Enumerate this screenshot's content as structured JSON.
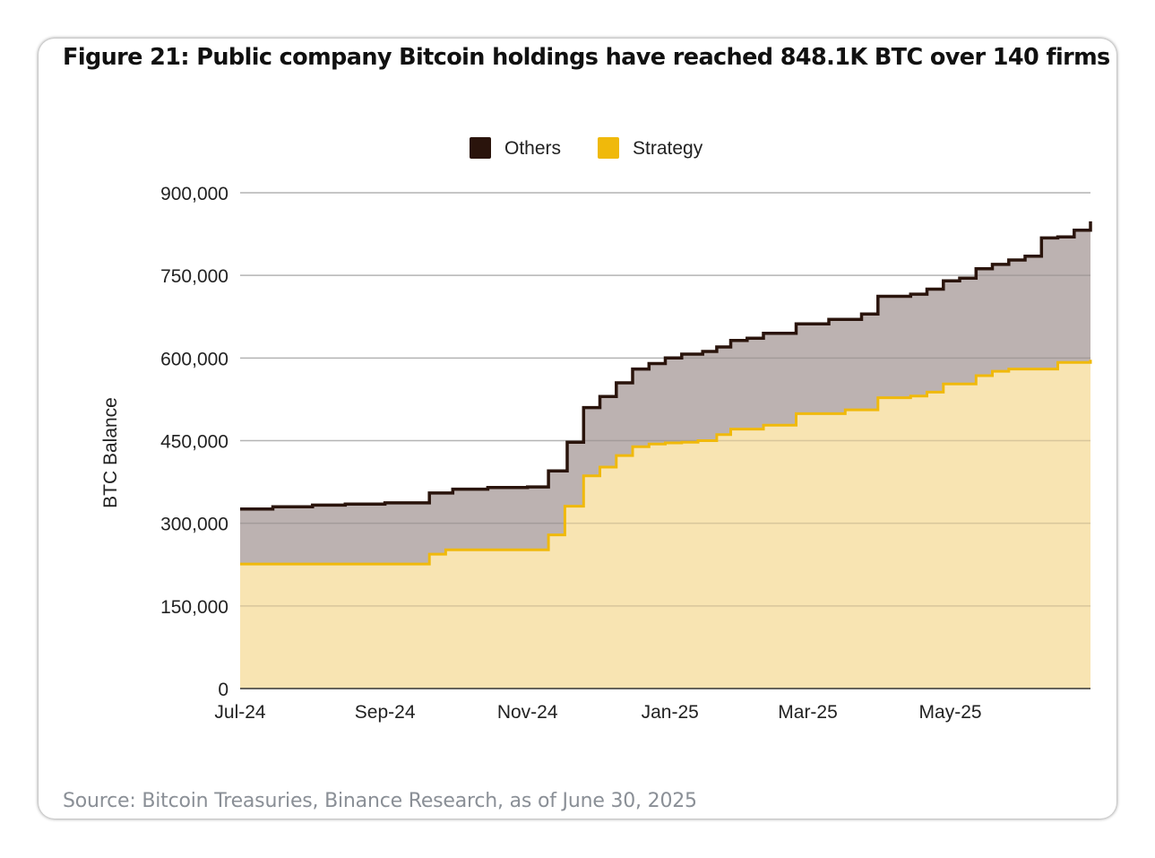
{
  "figure": {
    "title": "Figure 21: Public company Bitcoin holdings have reached 848.1K BTC over 140 firms",
    "source": "Source: Bitcoin Treasuries, Binance Research, as of June 30, 2025"
  },
  "chart_data": {
    "type": "area",
    "stacked": true,
    "step": true,
    "ylabel": "BTC Balance",
    "xlabel": "",
    "ylim": [
      0,
      900000
    ],
    "yticks": [
      0,
      150000,
      300000,
      450000,
      600000,
      750000,
      900000
    ],
    "ytick_labels": [
      "0",
      "150,000",
      "300,000",
      "450,000",
      "600,000",
      "750,000",
      "900,000"
    ],
    "xlim": [
      "2024-07-01",
      "2025-06-30"
    ],
    "xticks": [
      "2024-07-01",
      "2024-09-01",
      "2024-11-01",
      "2025-01-01",
      "2025-03-01",
      "2025-05-01"
    ],
    "xtick_labels": [
      "Jul-24",
      "Sep-24",
      "Nov-24",
      "Jan-25",
      "Mar-25",
      "May-25"
    ],
    "grid": true,
    "legend_position": "top-center",
    "legend": [
      {
        "name": "Others",
        "color": "#2a140c",
        "fill": "#bcb2b1"
      },
      {
        "name": "Strategy",
        "color": "#f0b90b",
        "fill": "#f8e4b2"
      }
    ],
    "series": [
      {
        "name": "Total (Strategy + Others)",
        "points": [
          [
            "2024-07-01",
            326000
          ],
          [
            "2024-07-15",
            330000
          ],
          [
            "2024-08-01",
            333000
          ],
          [
            "2024-08-15",
            335000
          ],
          [
            "2024-09-01",
            337000
          ],
          [
            "2024-09-20",
            355000
          ],
          [
            "2024-09-30",
            362000
          ],
          [
            "2024-10-15",
            365000
          ],
          [
            "2024-11-01",
            366000
          ],
          [
            "2024-11-10",
            395000
          ],
          [
            "2024-11-18",
            447000
          ],
          [
            "2024-11-25",
            510000
          ],
          [
            "2024-12-02",
            530000
          ],
          [
            "2024-12-09",
            555000
          ],
          [
            "2024-12-16",
            580000
          ],
          [
            "2024-12-23",
            590000
          ],
          [
            "2024-12-30",
            600000
          ],
          [
            "2025-01-06",
            607000
          ],
          [
            "2025-01-15",
            612000
          ],
          [
            "2025-01-21",
            620000
          ],
          [
            "2025-01-27",
            632000
          ],
          [
            "2025-02-03",
            636000
          ],
          [
            "2025-02-10",
            645000
          ],
          [
            "2025-02-24",
            662000
          ],
          [
            "2025-03-10",
            670000
          ],
          [
            "2025-03-24",
            680000
          ],
          [
            "2025-03-31",
            712000
          ],
          [
            "2025-04-14",
            716000
          ],
          [
            "2025-04-21",
            725000
          ],
          [
            "2025-04-28",
            740000
          ],
          [
            "2025-05-05",
            745000
          ],
          [
            "2025-05-12",
            762000
          ],
          [
            "2025-05-19",
            770000
          ],
          [
            "2025-05-26",
            778000
          ],
          [
            "2025-06-02",
            785000
          ],
          [
            "2025-06-09",
            818000
          ],
          [
            "2025-06-16",
            820000
          ],
          [
            "2025-06-23",
            832000
          ],
          [
            "2025-06-30",
            848100
          ]
        ]
      },
      {
        "name": "Strategy",
        "points": [
          [
            "2024-07-01",
            226000
          ],
          [
            "2024-09-20",
            244000
          ],
          [
            "2024-09-27",
            252000
          ],
          [
            "2024-11-10",
            279000
          ],
          [
            "2024-11-17",
            331000
          ],
          [
            "2024-11-25",
            386000
          ],
          [
            "2024-12-02",
            402000
          ],
          [
            "2024-12-09",
            423000
          ],
          [
            "2024-12-16",
            439000
          ],
          [
            "2024-12-23",
            444000
          ],
          [
            "2024-12-30",
            446000
          ],
          [
            "2025-01-06",
            447000
          ],
          [
            "2025-01-13",
            450000
          ],
          [
            "2025-01-21",
            461000
          ],
          [
            "2025-01-27",
            471000
          ],
          [
            "2025-02-10",
            478000
          ],
          [
            "2025-02-24",
            499000
          ],
          [
            "2025-03-17",
            506000
          ],
          [
            "2025-03-31",
            528000
          ],
          [
            "2025-04-14",
            531000
          ],
          [
            "2025-04-21",
            538000
          ],
          [
            "2025-04-28",
            553000
          ],
          [
            "2025-05-12",
            568000
          ],
          [
            "2025-05-19",
            576000
          ],
          [
            "2025-05-26",
            580000
          ],
          [
            "2025-06-16",
            592000
          ],
          [
            "2025-06-30",
            597000
          ]
        ]
      }
    ]
  }
}
